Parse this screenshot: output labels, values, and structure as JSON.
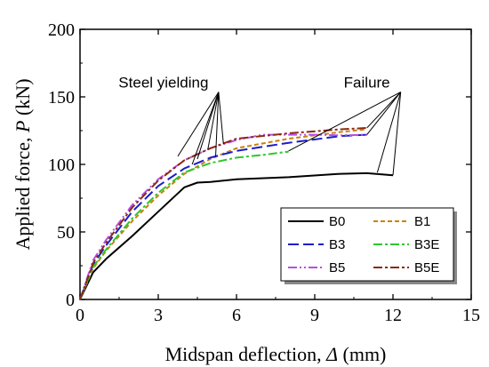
{
  "chart_data": {
    "type": "line",
    "xlabel": {
      "prefix": "Midspan deflection, ",
      "symbol": "Δ",
      "suffix": " (mm)"
    },
    "ylabel": {
      "prefix": "Applied force, ",
      "symbol": "P",
      "suffix": " (kN)"
    },
    "xlim": [
      0,
      15
    ],
    "ylim": [
      0,
      200
    ],
    "xticks": [
      0,
      3,
      6,
      9,
      12,
      15
    ],
    "yticks": [
      0,
      50,
      100,
      150,
      200
    ],
    "grid": false,
    "legend_position": "bottom-right",
    "series": [
      {
        "name": "B0",
        "color": "#000000",
        "dash": "solid",
        "points": [
          [
            0,
            0
          ],
          [
            0.5,
            20
          ],
          [
            1,
            30
          ],
          [
            2,
            47
          ],
          [
            3,
            65
          ],
          [
            4,
            83
          ],
          [
            4.5,
            86.5
          ],
          [
            5,
            87
          ],
          [
            6,
            89
          ],
          [
            8,
            90.5
          ],
          [
            10,
            93
          ],
          [
            11,
            93.5
          ],
          [
            12,
            92
          ]
        ]
      },
      {
        "name": "B1",
        "color": "#c8820a",
        "dash": "short-dash",
        "points": [
          [
            0,
            0
          ],
          [
            0.5,
            23
          ],
          [
            1,
            36
          ],
          [
            2,
            58
          ],
          [
            3,
            77
          ],
          [
            4,
            93
          ],
          [
            5,
            104
          ],
          [
            6,
            112
          ],
          [
            8,
            119
          ],
          [
            10,
            124
          ],
          [
            11,
            126
          ]
        ]
      },
      {
        "name": "B3",
        "color": "#1c1ccc",
        "dash": "long-dash",
        "points": [
          [
            0,
            0
          ],
          [
            0.5,
            26
          ],
          [
            1,
            40
          ],
          [
            2,
            65
          ],
          [
            3,
            84
          ],
          [
            4,
            97
          ],
          [
            5,
            105
          ],
          [
            6,
            110
          ],
          [
            8,
            116
          ],
          [
            10,
            121
          ],
          [
            11,
            122
          ]
        ]
      },
      {
        "name": "B3E",
        "color": "#2fc52f",
        "dash": "dash-dot",
        "points": [
          [
            0,
            0
          ],
          [
            0.5,
            24
          ],
          [
            1,
            37
          ],
          [
            2,
            60
          ],
          [
            3,
            79
          ],
          [
            4,
            94
          ],
          [
            5,
            101
          ],
          [
            6,
            105
          ],
          [
            7,
            107
          ],
          [
            8,
            109.5
          ]
        ]
      },
      {
        "name": "B5",
        "color": "#b64ee6",
        "dash": "dash-dot-dot",
        "points": [
          [
            0,
            0
          ],
          [
            0.5,
            29
          ],
          [
            1,
            44
          ],
          [
            2,
            70
          ],
          [
            3,
            89
          ],
          [
            4,
            103
          ],
          [
            5,
            112
          ],
          [
            6,
            118
          ],
          [
            7,
            122
          ],
          [
            8,
            122
          ],
          [
            9,
            122
          ],
          [
            10,
            121.5
          ],
          [
            11,
            122
          ]
        ]
      },
      {
        "name": "B5E",
        "color": "#8a2a12",
        "dash": "dash-dot",
        "points": [
          [
            0,
            0
          ],
          [
            0.5,
            27
          ],
          [
            1,
            42
          ],
          [
            2,
            68
          ],
          [
            3,
            88
          ],
          [
            4,
            103
          ],
          [
            5,
            112
          ],
          [
            6,
            119
          ],
          [
            8,
            123
          ],
          [
            10,
            126
          ],
          [
            11,
            127
          ]
        ]
      }
    ],
    "annotations": [
      {
        "text": "Steel yielding",
        "x": 3.2,
        "y": 145,
        "arrows": [
          [
            3.75,
            106
          ],
          [
            4.3,
            100
          ],
          [
            4.5,
            104
          ],
          [
            4.9,
            111
          ],
          [
            5.2,
            106
          ],
          [
            5.5,
            115
          ]
        ]
      },
      {
        "text": "Failure",
        "x": 11.0,
        "y": 145,
        "arrows": [
          [
            8.0,
            110
          ],
          [
            11.0,
            122
          ],
          [
            11.0,
            127
          ],
          [
            11.4,
            94
          ],
          [
            12.0,
            92
          ]
        ]
      }
    ]
  }
}
